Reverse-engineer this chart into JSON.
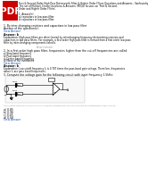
{
  "background_color": "#ffffff",
  "pdf_icon_color": "#cc0000",
  "pdf_icon_text": "PDF",
  "text_color": "#000000",
  "gray_color": "#666666",
  "link_color": "#1155cc",
  "q1": "1. By inter-changing resistors and capacitors in low pass filter",
  "q1_ans_label": "Answer of the question(s):",
  "q1_view": "View Answer",
  "q1_ans": "Answer: b",
  "q1_exp_lines": [
    "Explanation: High pass filters are often formed by interchanging frequency determining resistors and",
    "capacitors in low pass filters. For example, a first order high pass filter is formed from a first order low pass",
    "filter by inter-changing components listed b."
  ],
  "adv_label": "Advertisement",
  "q2": "2. In a first order high pass filter, frequencies higher than the cut-off frequencies are called",
  "q2_opts": [
    "a) Stop band frequency",
    "b) Pass band frequency",
    "c) Centre band frequency",
    "d) None of the mentioned"
  ],
  "q2_view": "View Answer",
  "q2_ans": "Answer: b",
  "q2_exp_lines": [
    "Explanation: Low cutoff frequency f₀ is 0.707 times the pass band gain voltage. Therefore, frequencies",
    "above f₀ are pass band frequencies."
  ],
  "q3": "3. Compute the voltage gain for the following circuit with input frequency 1.5kHz:",
  "q3_opts": [
    "a) 0.85",
    "b) 0.96",
    "c) 0.45",
    "d) 0.68"
  ],
  "q3_view": "View Answer",
  "header_title": "First & Second-Order High Pass Butterworth Filter & Higher Order Filters Questions and Answers - Sanfoundry",
  "intro_lines": [
    "This set of Multiple Choice Questions & Answers (MCQs) focuses on 'First & Second-",
    "Order and Higher Order Filters'.",
    "",
    "1. Answer(s):",
    "a) capacitors in low pass filter",
    "b) capacitors in low pass filter"
  ]
}
